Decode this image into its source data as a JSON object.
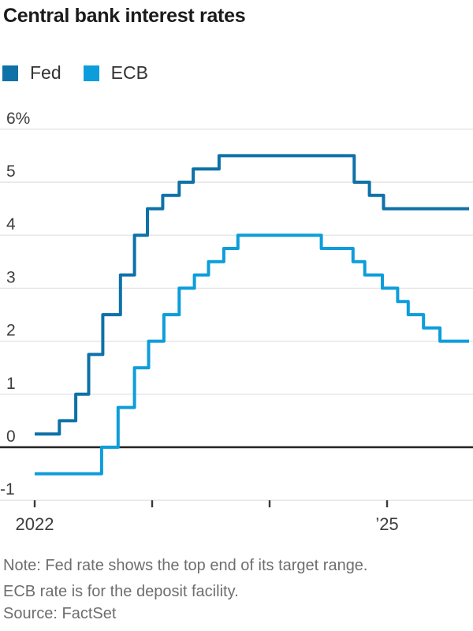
{
  "page": {
    "title": "Central bank interest rates"
  },
  "legend": {
    "items": [
      {
        "label": "Fed",
        "color": "#0e71a7"
      },
      {
        "label": "ECB",
        "color": "#0d9ddb"
      }
    ]
  },
  "footer": {
    "note_lines": [
      "Note: Fed rate shows the top end of its target range.",
      "ECB rate is for the deposit facility."
    ],
    "source": "Source: FactSet"
  },
  "chart_data": {
    "type": "line",
    "subtype": "step-after",
    "title": "Central bank interest rates",
    "ylabel": "",
    "unit": "%",
    "x_domain": [
      2022.0,
      2025.7
    ],
    "ylim": [
      -1,
      6
    ],
    "grid": true,
    "legend_position": "top-left",
    "axis": {
      "grid_color": "#e4e4e4",
      "zero_line_color": "#232323",
      "label_color": "#3d3d3d",
      "tick_color": "#3a3a3a"
    },
    "y_ticks": [
      {
        "v": 6,
        "label": "6%"
      },
      {
        "v": 5,
        "label": "5"
      },
      {
        "v": 4,
        "label": "4"
      },
      {
        "v": 3,
        "label": "3"
      },
      {
        "v": 2,
        "label": "2"
      },
      {
        "v": 1,
        "label": "1"
      },
      {
        "v": 0,
        "label": "0"
      },
      {
        "v": -1,
        "label": "-1"
      }
    ],
    "x_ticks": [
      {
        "v": 2022,
        "label": "2022"
      },
      {
        "v": 2023,
        "label": ""
      },
      {
        "v": 2024,
        "label": ""
      },
      {
        "v": 2025,
        "label": "’25"
      }
    ],
    "series": [
      {
        "name": "Fed",
        "color": "#0e71a7",
        "steps": [
          [
            2022.0,
            0.25
          ],
          [
            2022.21,
            0.5
          ],
          [
            2022.35,
            1.0
          ],
          [
            2022.46,
            1.75
          ],
          [
            2022.58,
            2.5
          ],
          [
            2022.73,
            3.25
          ],
          [
            2022.85,
            4.0
          ],
          [
            2022.96,
            4.5
          ],
          [
            2023.09,
            4.75
          ],
          [
            2023.23,
            5.0
          ],
          [
            2023.35,
            5.25
          ],
          [
            2023.57,
            5.5
          ],
          [
            2024.72,
            5.0
          ],
          [
            2024.85,
            4.75
          ],
          [
            2024.97,
            4.5
          ]
        ]
      },
      {
        "name": "ECB",
        "color": "#0d9ddb",
        "steps": [
          [
            2022.0,
            -0.5
          ],
          [
            2022.57,
            0.0
          ],
          [
            2022.71,
            0.75
          ],
          [
            2022.85,
            1.5
          ],
          [
            2022.97,
            2.0
          ],
          [
            2023.1,
            2.5
          ],
          [
            2023.23,
            3.0
          ],
          [
            2023.36,
            3.25
          ],
          [
            2023.48,
            3.5
          ],
          [
            2023.61,
            3.75
          ],
          [
            2023.73,
            4.0
          ],
          [
            2024.44,
            3.75
          ],
          [
            2024.71,
            3.5
          ],
          [
            2024.81,
            3.25
          ],
          [
            2024.96,
            3.0
          ],
          [
            2025.09,
            2.75
          ],
          [
            2025.18,
            2.5
          ],
          [
            2025.31,
            2.25
          ],
          [
            2025.45,
            2.0
          ]
        ]
      }
    ]
  }
}
